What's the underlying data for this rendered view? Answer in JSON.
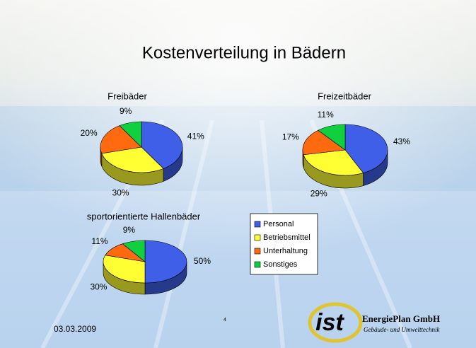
{
  "slide": {
    "title": "Kostenverteilung in Bädern"
  },
  "footer": {
    "date": "03.03.2009",
    "page": "4"
  },
  "logo": {
    "mark": "ist",
    "company": "EnergiePlan GmbH",
    "subtitle": "Gebäude- und Umwelttechnik"
  },
  "chart_data": [
    {
      "type": "pie",
      "title": "Freibäder",
      "categories": [
        "Personal",
        "Betriebsmittel",
        "Unterhaltung",
        "Sonstiges"
      ],
      "values": [
        41,
        30,
        20,
        9
      ],
      "value_labels": [
        "41%",
        "30%",
        "20%",
        "9%"
      ],
      "colors": [
        "#3f5fe8",
        "#ffff33",
        "#ff6a10",
        "#10d040"
      ]
    },
    {
      "type": "pie",
      "title": "Freizeitbäder",
      "categories": [
        "Personal",
        "Betriebsmittel",
        "Unterhaltung",
        "Sonstiges"
      ],
      "values": [
        43,
        29,
        17,
        11
      ],
      "value_labels": [
        "43%",
        "29%",
        "17%",
        "11%"
      ],
      "colors": [
        "#3f5fe8",
        "#ffff33",
        "#ff6a10",
        "#10d040"
      ]
    },
    {
      "type": "pie",
      "title": "sportorientierte Hallenbäder",
      "categories": [
        "Personal",
        "Betriebsmittel",
        "Unterhaltung",
        "Sonstiges"
      ],
      "values": [
        50,
        30,
        11,
        9
      ],
      "value_labels": [
        "50%",
        "30%",
        "11%",
        "9%"
      ],
      "colors": [
        "#3f5fe8",
        "#ffff33",
        "#ff6a10",
        "#10d040"
      ]
    }
  ]
}
